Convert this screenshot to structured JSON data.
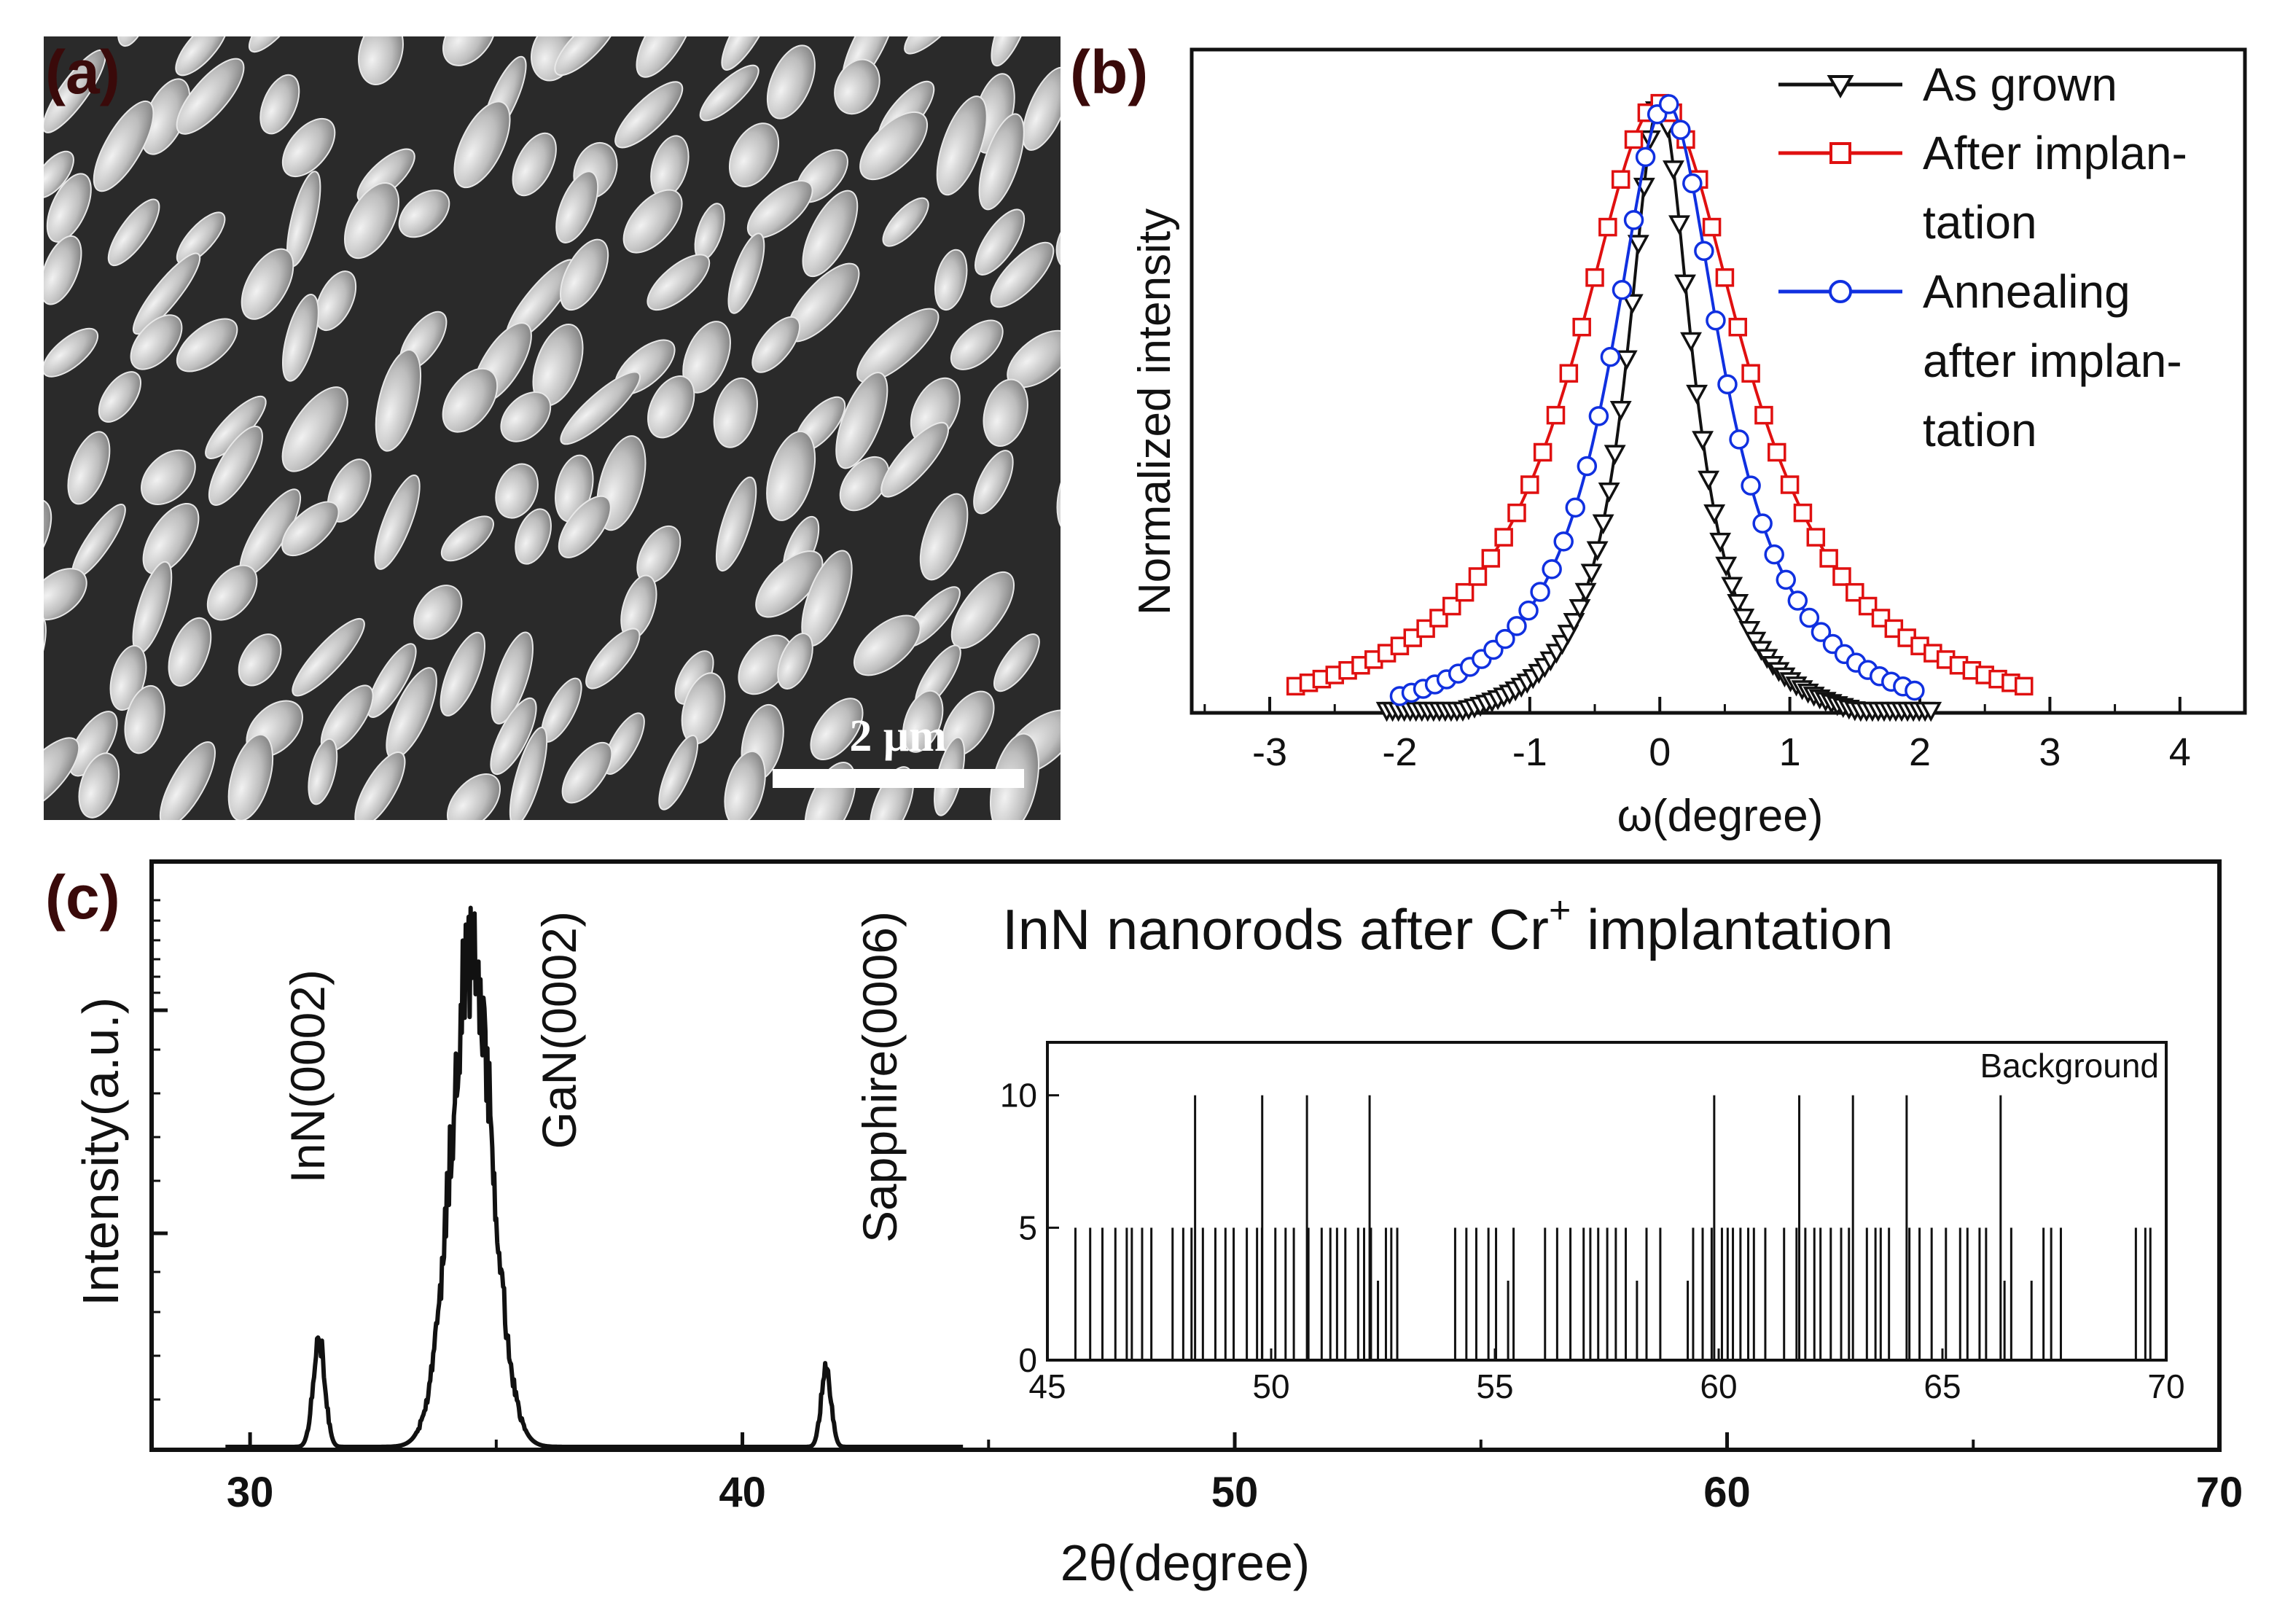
{
  "panels": {
    "a": {
      "label": "(a)",
      "image": "SEM image of tilted InN nanorods",
      "scale_bar": "2 μm"
    },
    "b": {
      "label": "(b)"
    },
    "c": {
      "label": "(c)"
    }
  },
  "colors": {
    "black": "#111111",
    "red": "#e01010",
    "blue": "#1030e0",
    "sem_bg": "#2a2a2a"
  },
  "chart_data": [
    {
      "id": "b",
      "type": "line",
      "title": "",
      "xlabel": "ω(degree)",
      "ylabel": "Normalized intensity",
      "xlim": [
        -3.6,
        4.5
      ],
      "ylim": [
        0,
        1.05
      ],
      "xticks": [
        "-3",
        "-2",
        "-1",
        "0",
        "1",
        "2",
        "3",
        "4"
      ],
      "legend_position": "top-right",
      "series": [
        {
          "name": "As grown",
          "color": "#111111",
          "marker": "triangle-down",
          "center": 0.0,
          "fwhm": 0.62,
          "range": [
            -2.1,
            2.1
          ]
        },
        {
          "name": "After implantation",
          "color": "#e01010",
          "marker": "square",
          "center": 0.0,
          "fwhm": 1.62,
          "range": [
            -2.8,
            2.8
          ]
        },
        {
          "name": "Annealing after implantation",
          "color": "#1030e0",
          "marker": "circle",
          "center": 0.05,
          "fwhm": 1.05,
          "range": [
            -2.0,
            2.0
          ]
        }
      ],
      "legend_lines": [
        [
          "As grown"
        ],
        [
          "After implan-",
          "tation"
        ],
        [
          "Annealing",
          "after implan-",
          "tation"
        ]
      ]
    },
    {
      "id": "c",
      "type": "line",
      "title": "InN nanorods after Cr⁺ implantation",
      "title_text": "InN nanorods after Cr",
      "title_sup": "+",
      "title_tail": " implantation",
      "xlabel": "2θ(degree)",
      "ylabel": "Intensity(a.u.)",
      "xlim": [
        28,
        70
      ],
      "xticks": [
        "30",
        "40",
        "50",
        "60",
        "70"
      ],
      "yscale": "log",
      "peaks": [
        {
          "label": "InN(0002)",
          "position": 31.4,
          "relative_height": 0.22
        },
        {
          "label": "GaN(0002)",
          "position": 34.5,
          "relative_height": 1.0
        },
        {
          "label": "Sapphire(0006)",
          "position": 41.7,
          "relative_height": 0.16
        }
      ]
    },
    {
      "id": "c-inset",
      "type": "bar",
      "title": "",
      "legend": "Background",
      "xlim": [
        45,
        70
      ],
      "ylim": [
        0,
        12
      ],
      "xticks": [
        "45",
        "50",
        "55",
        "60",
        "65",
        "70"
      ],
      "yticks": [
        "0",
        "5",
        "10"
      ],
      "spikes_10": [
        48.3,
        49.8,
        50.8,
        52.2,
        59.9,
        61.8,
        63.0,
        64.2,
        66.3
      ],
      "gaps": [
        [
          53.0,
          54.0
        ],
        [
          58.8,
          59.3
        ],
        [
          67.7,
          69.3
        ]
      ],
      "count_level": 5
    }
  ]
}
